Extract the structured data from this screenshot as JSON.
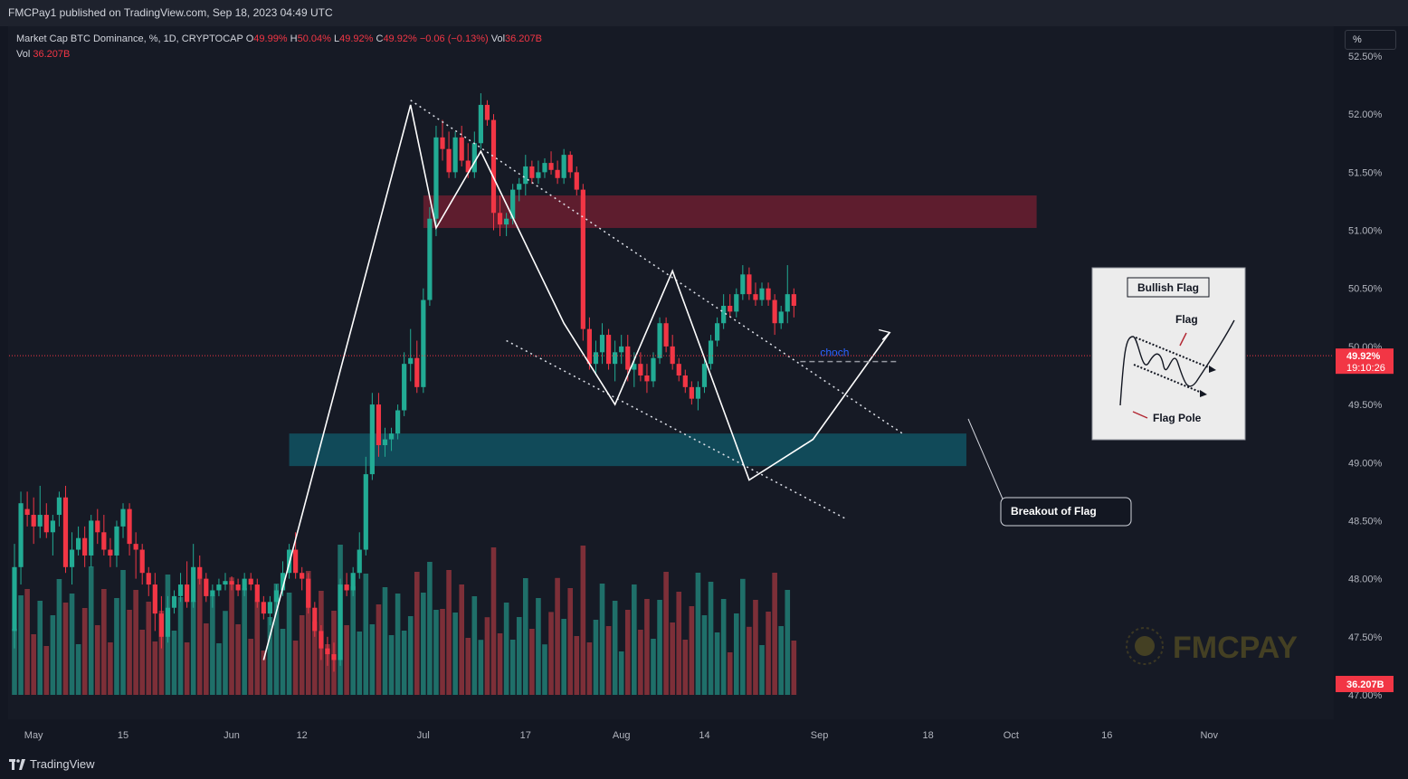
{
  "header": {
    "publisher": "FMCPay1 published on TradingView.com, Sep 18, 2023 04:49 UTC"
  },
  "legend": {
    "symbol": "Market Cap BTC Dominance, %, 1D, CRYPTOCAP",
    "o_label": "O",
    "o_value": "49.99%",
    "h_label": "H",
    "h_value": "50.04%",
    "l_label": "L",
    "l_value": "49.92%",
    "c_label": "C",
    "c_value": "49.92%",
    "change": "−0.06 (−0.13%)",
    "vol_label": "Vol",
    "vol_value": "36.207B",
    "vol2_label": "Vol",
    "vol2_value": "36.207B"
  },
  "unit_button": "%",
  "price_badge": {
    "value": "49.92%",
    "countdown": "19:10:26"
  },
  "volume_badge": "36.207B",
  "annotations": {
    "choch": "choch",
    "breakout": "Breakout of Flag",
    "inset_title": "Bullish Flag",
    "inset_flag": "Flag",
    "inset_pole": "Flag Pole"
  },
  "watermark": "FMCPAY",
  "brand": "TradingView",
  "colors": {
    "up": "#22ab94",
    "down": "#f23645",
    "up_vol": "#1f6f69",
    "down_vol": "#7d2f38",
    "resistance_zone": "#6b1f30",
    "support_zone": "#11505f",
    "price_line": "#f23645"
  },
  "chart_data": {
    "type": "candlestick",
    "title": "Market Cap BTC Dominance, %, 1D, CRYPTOCAP",
    "y_unit": "%",
    "ylim": [
      46.95,
      52.6
    ],
    "y_ticks": [
      "52.50%",
      "52.00%",
      "51.50%",
      "51.00%",
      "50.50%",
      "50.00%",
      "49.50%",
      "49.00%",
      "48.50%",
      "48.00%",
      "47.50%",
      "47.00%"
    ],
    "x_ticks": [
      "May",
      "15",
      "Jun",
      "12",
      "Jul",
      "17",
      "Aug",
      "14",
      "Sep",
      "18",
      "Oct",
      "16",
      "Nov"
    ],
    "x_range": [
      "2023-04-28",
      "2023-11-10"
    ],
    "last_close": 49.92,
    "zones": [
      {
        "name": "resistance",
        "from": 51.02,
        "to": 51.3,
        "start": "2023-07-01",
        "end": "2023-10-05"
      },
      {
        "name": "support",
        "from": 48.97,
        "to": 49.25,
        "start": "2023-06-10",
        "end": "2023-09-24"
      }
    ],
    "zigzag": [
      {
        "date": "2023-06-06",
        "value": 47.3
      },
      {
        "date": "2023-06-29",
        "value": 52.08
      },
      {
        "date": "2023-07-03",
        "value": 51.02
      },
      {
        "date": "2023-07-10",
        "value": 51.68
      },
      {
        "date": "2023-07-23",
        "value": 50.2
      },
      {
        "date": "2023-07-31",
        "value": 49.5
      },
      {
        "date": "2023-08-09",
        "value": 50.65
      },
      {
        "date": "2023-08-21",
        "value": 48.85
      },
      {
        "date": "2023-08-31",
        "value": 49.2
      },
      {
        "date": "2023-09-12",
        "value": 50.12
      }
    ],
    "flag_upper_line": [
      {
        "date": "2023-06-29",
        "value": 52.12
      },
      {
        "date": "2023-09-14",
        "value": 49.25
      }
    ],
    "flag_lower_line": [
      {
        "date": "2023-07-14",
        "value": 50.05
      },
      {
        "date": "2023-09-05",
        "value": 48.52
      }
    ],
    "choch_level": {
      "start": "2023-08-29",
      "end": "2023-09-13",
      "value": 49.87
    },
    "candles": [
      {
        "d": "2023-04-28",
        "o": 47.55,
        "h": 48.3,
        "l": 47.4,
        "c": 48.1
      },
      {
        "d": "2023-04-29",
        "o": 48.1,
        "h": 48.75,
        "l": 47.95,
        "c": 48.65
      },
      {
        "d": "2023-04-30",
        "o": 48.6,
        "h": 48.75,
        "l": 48.45,
        "c": 48.55
      },
      {
        "d": "2023-05-01",
        "o": 48.55,
        "h": 48.7,
        "l": 48.3,
        "c": 48.45
      },
      {
        "d": "2023-05-02",
        "o": 48.45,
        "h": 48.8,
        "l": 48.35,
        "c": 48.55
      },
      {
        "d": "2023-05-03",
        "o": 48.55,
        "h": 48.65,
        "l": 48.35,
        "c": 48.4
      },
      {
        "d": "2023-05-04",
        "o": 48.4,
        "h": 48.55,
        "l": 48.2,
        "c": 48.5
      },
      {
        "d": "2023-05-05",
        "o": 48.55,
        "h": 48.75,
        "l": 48.45,
        "c": 48.7
      },
      {
        "d": "2023-05-06",
        "o": 48.7,
        "h": 48.8,
        "l": 48.05,
        "c": 48.1
      },
      {
        "d": "2023-05-07",
        "o": 48.1,
        "h": 48.4,
        "l": 47.95,
        "c": 48.25
      },
      {
        "d": "2023-05-08",
        "o": 48.25,
        "h": 48.45,
        "l": 48.2,
        "c": 48.35
      },
      {
        "d": "2023-05-09",
        "o": 48.35,
        "h": 48.45,
        "l": 48.1,
        "c": 48.2
      },
      {
        "d": "2023-05-10",
        "o": 48.2,
        "h": 48.55,
        "l": 48.1,
        "c": 48.5
      },
      {
        "d": "2023-05-11",
        "o": 48.5,
        "h": 48.6,
        "l": 48.3,
        "c": 48.4
      },
      {
        "d": "2023-05-12",
        "o": 48.4,
        "h": 48.55,
        "l": 48.2,
        "c": 48.25
      },
      {
        "d": "2023-05-13",
        "o": 48.25,
        "h": 48.35,
        "l": 48.1,
        "c": 48.2
      },
      {
        "d": "2023-05-14",
        "o": 48.2,
        "h": 48.5,
        "l": 48.1,
        "c": 48.45
      },
      {
        "d": "2023-05-15",
        "o": 48.45,
        "h": 48.65,
        "l": 48.35,
        "c": 48.6
      },
      {
        "d": "2023-05-16",
        "o": 48.6,
        "h": 48.65,
        "l": 48.2,
        "c": 48.3
      },
      {
        "d": "2023-05-17",
        "o": 48.3,
        "h": 48.4,
        "l": 48.0,
        "c": 48.25
      },
      {
        "d": "2023-05-18",
        "o": 48.25,
        "h": 48.3,
        "l": 47.95,
        "c": 48.05
      },
      {
        "d": "2023-05-19",
        "o": 48.05,
        "h": 48.1,
        "l": 47.85,
        "c": 47.95
      },
      {
        "d": "2023-05-20",
        "o": 47.95,
        "h": 48.05,
        "l": 47.55,
        "c": 47.7
      },
      {
        "d": "2023-05-21",
        "o": 47.7,
        "h": 47.85,
        "l": 47.4,
        "c": 47.5
      },
      {
        "d": "2023-05-22",
        "o": 47.5,
        "h": 47.85,
        "l": 47.45,
        "c": 47.75
      },
      {
        "d": "2023-05-23",
        "o": 47.75,
        "h": 47.9,
        "l": 47.7,
        "c": 47.85
      },
      {
        "d": "2023-05-24",
        "o": 47.85,
        "h": 48.05,
        "l": 47.8,
        "c": 47.95
      },
      {
        "d": "2023-05-25",
        "o": 47.95,
        "h": 48.15,
        "l": 47.75,
        "c": 47.8
      },
      {
        "d": "2023-05-26",
        "o": 47.8,
        "h": 48.3,
        "l": 47.75,
        "c": 48.1
      },
      {
        "d": "2023-05-27",
        "o": 48.1,
        "h": 48.2,
        "l": 47.95,
        "c": 48.0
      },
      {
        "d": "2023-05-28",
        "o": 48.0,
        "h": 48.05,
        "l": 47.8,
        "c": 47.85
      },
      {
        "d": "2023-05-29",
        "o": 47.85,
        "h": 47.95,
        "l": 47.75,
        "c": 47.9
      },
      {
        "d": "2023-05-30",
        "o": 47.9,
        "h": 48.0,
        "l": 47.85,
        "c": 47.95
      },
      {
        "d": "2023-05-31",
        "o": 47.95,
        "h": 48.05,
        "l": 47.9,
        "c": 47.98
      },
      {
        "d": "2023-06-01",
        "o": 47.98,
        "h": 48.02,
        "l": 47.9,
        "c": 47.95
      },
      {
        "d": "2023-06-02",
        "o": 47.95,
        "h": 48.0,
        "l": 47.85,
        "c": 47.9
      },
      {
        "d": "2023-06-03",
        "o": 47.9,
        "h": 48.05,
        "l": 47.85,
        "c": 48.0
      },
      {
        "d": "2023-06-04",
        "o": 48.0,
        "h": 48.05,
        "l": 47.9,
        "c": 47.95
      },
      {
        "d": "2023-06-05",
        "o": 47.95,
        "h": 48.0,
        "l": 47.75,
        "c": 47.8
      },
      {
        "d": "2023-06-06",
        "o": 47.8,
        "h": 47.85,
        "l": 47.65,
        "c": 47.7
      },
      {
        "d": "2023-06-07",
        "o": 47.7,
        "h": 47.85,
        "l": 47.6,
        "c": 47.8
      },
      {
        "d": "2023-06-08",
        "o": 47.8,
        "h": 47.95,
        "l": 47.75,
        "c": 47.9
      },
      {
        "d": "2023-06-09",
        "o": 47.9,
        "h": 48.15,
        "l": 47.85,
        "c": 48.05
      },
      {
        "d": "2023-06-10",
        "o": 48.05,
        "h": 48.3,
        "l": 48.0,
        "c": 48.25
      },
      {
        "d": "2023-06-11",
        "o": 48.25,
        "h": 48.4,
        "l": 48.0,
        "c": 48.05
      },
      {
        "d": "2023-06-12",
        "o": 48.05,
        "h": 48.1,
        "l": 47.9,
        "c": 48.0
      },
      {
        "d": "2023-06-13",
        "o": 48.0,
        "h": 48.05,
        "l": 47.7,
        "c": 47.75
      },
      {
        "d": "2023-06-14",
        "o": 47.75,
        "h": 47.8,
        "l": 47.5,
        "c": 47.55
      },
      {
        "d": "2023-06-15",
        "o": 47.55,
        "h": 47.6,
        "l": 47.3,
        "c": 47.4
      },
      {
        "d": "2023-06-16",
        "o": 47.4,
        "h": 47.5,
        "l": 47.25,
        "c": 47.35
      },
      {
        "d": "2023-06-17",
        "o": 47.35,
        "h": 47.45,
        "l": 47.2,
        "c": 47.3
      },
      {
        "d": "2023-06-18",
        "o": 47.3,
        "h": 48.0,
        "l": 47.25,
        "c": 47.95
      },
      {
        "d": "2023-06-19",
        "o": 47.95,
        "h": 48.05,
        "l": 47.85,
        "c": 47.9
      },
      {
        "d": "2023-06-20",
        "o": 47.9,
        "h": 48.1,
        "l": 47.85,
        "c": 48.05
      },
      {
        "d": "2023-06-21",
        "o": 48.05,
        "h": 48.4,
        "l": 48.0,
        "c": 48.25
      },
      {
        "d": "2023-06-22",
        "o": 48.25,
        "h": 49.05,
        "l": 48.2,
        "c": 48.9
      },
      {
        "d": "2023-06-23",
        "o": 48.9,
        "h": 49.6,
        "l": 48.85,
        "c": 49.5
      },
      {
        "d": "2023-06-24",
        "o": 49.5,
        "h": 49.6,
        "l": 49.05,
        "c": 49.15
      },
      {
        "d": "2023-06-25",
        "o": 49.15,
        "h": 49.3,
        "l": 49.05,
        "c": 49.2
      },
      {
        "d": "2023-06-26",
        "o": 49.2,
        "h": 49.3,
        "l": 49.1,
        "c": 49.25
      },
      {
        "d": "2023-06-27",
        "o": 49.25,
        "h": 49.5,
        "l": 49.2,
        "c": 49.45
      },
      {
        "d": "2023-06-28",
        "o": 49.45,
        "h": 49.95,
        "l": 49.4,
        "c": 49.85
      },
      {
        "d": "2023-06-29",
        "o": 49.85,
        "h": 50.15,
        "l": 49.7,
        "c": 49.9
      },
      {
        "d": "2023-06-30",
        "o": 49.9,
        "h": 50.05,
        "l": 49.6,
        "c": 49.65
      },
      {
        "d": "2023-07-01",
        "o": 49.65,
        "h": 50.5,
        "l": 49.6,
        "c": 50.4
      },
      {
        "d": "2023-07-02",
        "o": 50.4,
        "h": 51.2,
        "l": 50.35,
        "c": 51.1
      },
      {
        "d": "2023-07-03",
        "o": 51.1,
        "h": 51.9,
        "l": 50.95,
        "c": 51.8
      },
      {
        "d": "2023-07-04",
        "o": 51.8,
        "h": 51.95,
        "l": 51.6,
        "c": 51.7
      },
      {
        "d": "2023-07-05",
        "o": 51.7,
        "h": 51.85,
        "l": 51.45,
        "c": 51.5
      },
      {
        "d": "2023-07-06",
        "o": 51.5,
        "h": 51.85,
        "l": 51.45,
        "c": 51.8
      },
      {
        "d": "2023-07-07",
        "o": 51.8,
        "h": 51.9,
        "l": 51.55,
        "c": 51.6
      },
      {
        "d": "2023-07-08",
        "o": 51.6,
        "h": 51.75,
        "l": 51.45,
        "c": 51.5
      },
      {
        "d": "2023-07-09",
        "o": 51.5,
        "h": 51.85,
        "l": 51.45,
        "c": 51.75
      },
      {
        "d": "2023-07-10",
        "o": 51.75,
        "h": 52.18,
        "l": 51.7,
        "c": 52.08
      },
      {
        "d": "2023-07-11",
        "o": 52.08,
        "h": 52.12,
        "l": 51.9,
        "c": 51.95
      },
      {
        "d": "2023-07-12",
        "o": 51.95,
        "h": 52.0,
        "l": 51.0,
        "c": 51.15
      },
      {
        "d": "2023-07-13",
        "o": 51.15,
        "h": 51.3,
        "l": 50.95,
        "c": 51.05
      },
      {
        "d": "2023-07-14",
        "o": 51.05,
        "h": 51.15,
        "l": 50.95,
        "c": 51.1
      },
      {
        "d": "2023-07-15",
        "o": 51.1,
        "h": 51.4,
        "l": 51.05,
        "c": 51.35
      },
      {
        "d": "2023-07-16",
        "o": 51.35,
        "h": 51.45,
        "l": 51.25,
        "c": 51.4
      },
      {
        "d": "2023-07-17",
        "o": 51.4,
        "h": 51.65,
        "l": 51.3,
        "c": 51.55
      },
      {
        "d": "2023-07-18",
        "o": 51.55,
        "h": 51.6,
        "l": 51.4,
        "c": 51.45
      },
      {
        "d": "2023-07-19",
        "o": 51.45,
        "h": 51.6,
        "l": 51.4,
        "c": 51.5
      },
      {
        "d": "2023-07-20",
        "o": 51.5,
        "h": 51.62,
        "l": 51.45,
        "c": 51.58
      },
      {
        "d": "2023-07-21",
        "o": 51.58,
        "h": 51.68,
        "l": 51.48,
        "c": 51.52
      },
      {
        "d": "2023-07-22",
        "o": 51.52,
        "h": 51.6,
        "l": 51.4,
        "c": 51.45
      },
      {
        "d": "2023-07-23",
        "o": 51.45,
        "h": 51.7,
        "l": 51.4,
        "c": 51.65
      },
      {
        "d": "2023-07-24",
        "o": 51.65,
        "h": 51.68,
        "l": 51.45,
        "c": 51.5
      },
      {
        "d": "2023-07-25",
        "o": 51.5,
        "h": 51.55,
        "l": 51.3,
        "c": 51.35
      },
      {
        "d": "2023-07-26",
        "o": 51.35,
        "h": 51.4,
        "l": 50.05,
        "c": 50.15
      },
      {
        "d": "2023-07-27",
        "o": 50.15,
        "h": 50.25,
        "l": 49.8,
        "c": 49.85
      },
      {
        "d": "2023-07-28",
        "o": 49.85,
        "h": 50.05,
        "l": 49.75,
        "c": 49.95
      },
      {
        "d": "2023-07-29",
        "o": 49.95,
        "h": 50.2,
        "l": 49.85,
        "c": 50.1
      },
      {
        "d": "2023-07-30",
        "o": 50.1,
        "h": 50.15,
        "l": 49.8,
        "c": 49.85
      },
      {
        "d": "2023-07-31",
        "o": 49.85,
        "h": 50.05,
        "l": 49.7,
        "c": 49.95
      },
      {
        "d": "2023-08-01",
        "o": 49.95,
        "h": 50.1,
        "l": 49.85,
        "c": 50.0
      },
      {
        "d": "2023-08-02",
        "o": 50.0,
        "h": 50.1,
        "l": 49.7,
        "c": 49.8
      },
      {
        "d": "2023-08-03",
        "o": 49.8,
        "h": 49.95,
        "l": 49.65,
        "c": 49.85
      },
      {
        "d": "2023-08-04",
        "o": 49.85,
        "h": 49.95,
        "l": 49.7,
        "c": 49.75
      },
      {
        "d": "2023-08-05",
        "o": 49.75,
        "h": 49.85,
        "l": 49.6,
        "c": 49.7
      },
      {
        "d": "2023-08-06",
        "o": 49.7,
        "h": 49.95,
        "l": 49.65,
        "c": 49.9
      },
      {
        "d": "2023-08-07",
        "o": 49.9,
        "h": 50.25,
        "l": 49.85,
        "c": 50.2
      },
      {
        "d": "2023-08-08",
        "o": 50.2,
        "h": 50.25,
        "l": 49.95,
        "c": 50.0
      },
      {
        "d": "2023-08-09",
        "o": 50.0,
        "h": 50.1,
        "l": 49.8,
        "c": 49.85
      },
      {
        "d": "2023-08-10",
        "o": 49.85,
        "h": 49.9,
        "l": 49.7,
        "c": 49.75
      },
      {
        "d": "2023-08-11",
        "o": 49.75,
        "h": 49.8,
        "l": 49.6,
        "c": 49.65
      },
      {
        "d": "2023-08-12",
        "o": 49.65,
        "h": 49.7,
        "l": 49.5,
        "c": 49.55
      },
      {
        "d": "2023-08-13",
        "o": 49.55,
        "h": 49.7,
        "l": 49.45,
        "c": 49.65
      },
      {
        "d": "2023-08-14",
        "o": 49.65,
        "h": 49.9,
        "l": 49.6,
        "c": 49.85
      },
      {
        "d": "2023-08-15",
        "o": 49.85,
        "h": 50.1,
        "l": 49.8,
        "c": 50.05
      },
      {
        "d": "2023-08-16",
        "o": 50.05,
        "h": 50.25,
        "l": 50.0,
        "c": 50.2
      },
      {
        "d": "2023-08-17",
        "o": 50.2,
        "h": 50.45,
        "l": 50.15,
        "c": 50.35
      },
      {
        "d": "2023-08-18",
        "o": 50.35,
        "h": 50.45,
        "l": 50.25,
        "c": 50.3
      },
      {
        "d": "2023-08-19",
        "o": 50.3,
        "h": 50.5,
        "l": 50.25,
        "c": 50.45
      },
      {
        "d": "2023-08-20",
        "o": 50.45,
        "h": 50.7,
        "l": 50.4,
        "c": 50.62
      },
      {
        "d": "2023-08-21",
        "o": 50.62,
        "h": 50.68,
        "l": 50.4,
        "c": 50.45
      },
      {
        "d": "2023-08-22",
        "o": 50.45,
        "h": 50.55,
        "l": 50.35,
        "c": 50.4
      },
      {
        "d": "2023-08-23",
        "o": 50.4,
        "h": 50.55,
        "l": 50.35,
        "c": 50.5
      },
      {
        "d": "2023-08-24",
        "o": 50.5,
        "h": 50.55,
        "l": 50.35,
        "c": 50.4
      },
      {
        "d": "2023-08-25",
        "o": 50.4,
        "h": 50.45,
        "l": 50.1,
        "c": 50.2
      },
      {
        "d": "2023-08-26",
        "o": 50.2,
        "h": 50.35,
        "l": 50.15,
        "c": 50.3
      },
      {
        "d": "2023-08-27",
        "o": 50.3,
        "h": 50.7,
        "l": 50.2,
        "c": 50.45
      },
      {
        "d": "2023-08-28",
        "o": 50.45,
        "h": 50.5,
        "l": 50.25,
        "c": 50.35
      }
    ]
  }
}
